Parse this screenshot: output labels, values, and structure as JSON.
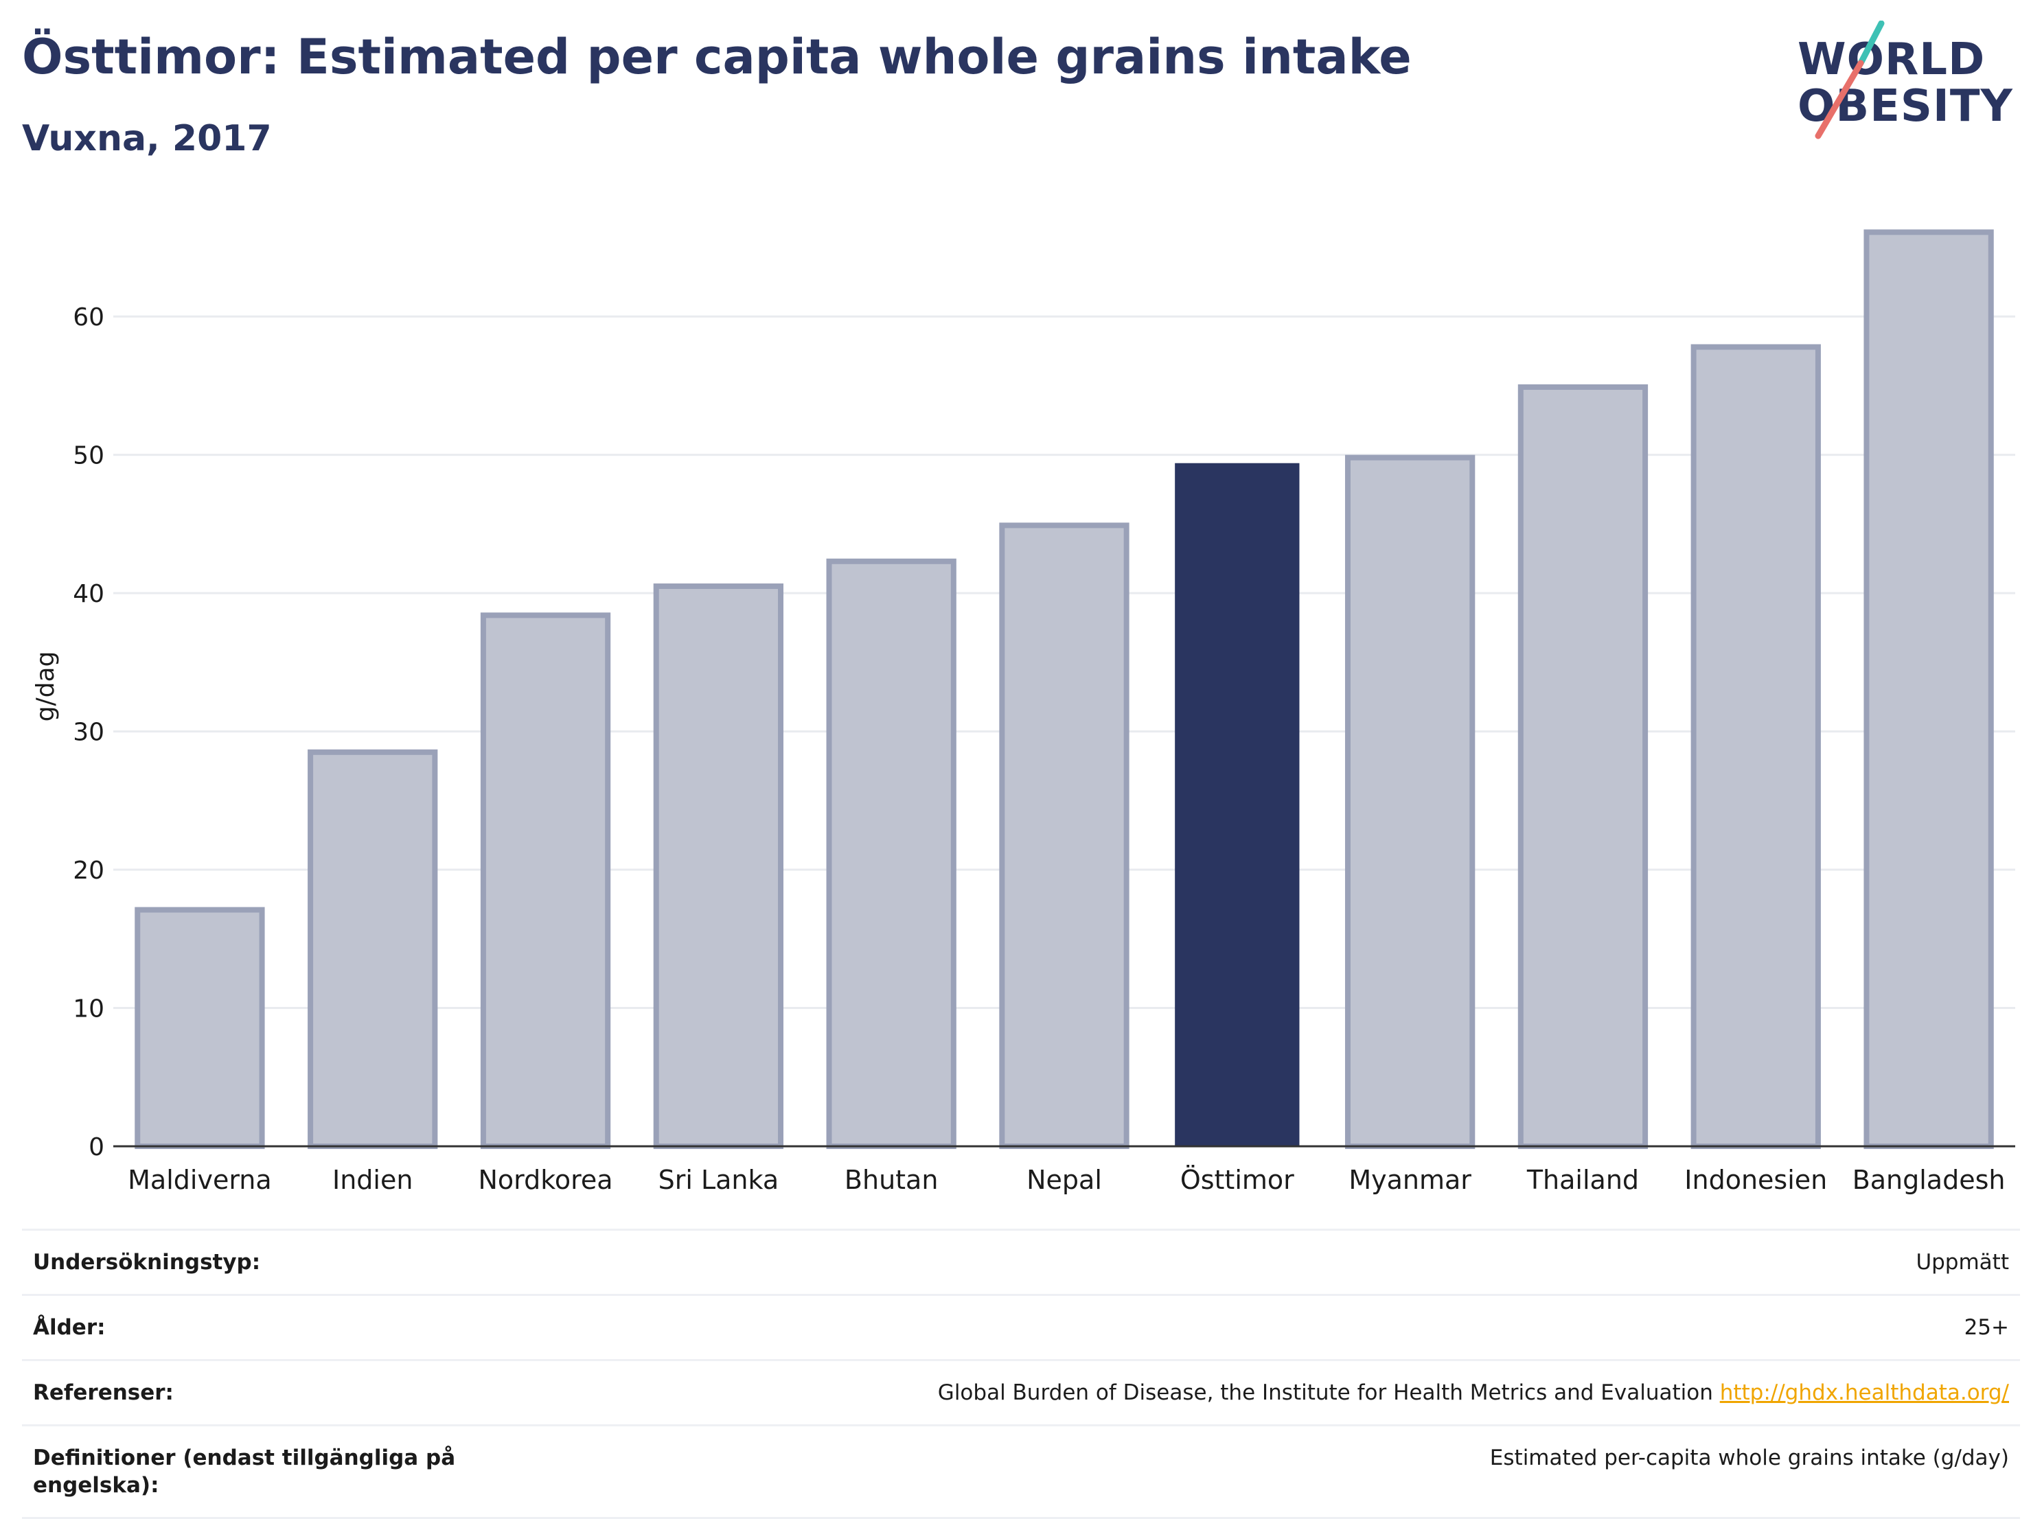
{
  "header": {
    "title": "Östtimor: Estimated per capita whole grains intake",
    "subtitle": "Vuxna, 2017"
  },
  "logo": {
    "line1": "WORLD",
    "line2": "OBESITY",
    "colors": {
      "text": "#2a3560",
      "slash_top": "#3ec1b5",
      "slash_bottom": "#e8706a"
    }
  },
  "chart_data": {
    "type": "bar",
    "ylabel": "g/dag",
    "xlabel": "",
    "ylim": [
      0,
      68
    ],
    "yticks": [
      0,
      10,
      20,
      30,
      40,
      50,
      60
    ],
    "grid": true,
    "highlight": "Östtimor",
    "colors": {
      "bar": "#bfc3d0",
      "bar_edge": "#9aa1b8",
      "highlight": "#2a3560",
      "grid": "#e9ebef",
      "axis": "#333333"
    },
    "categories": [
      "Maldiverna",
      "Indien",
      "Nordkorea",
      "Sri Lanka",
      "Bhutan",
      "Nepal",
      "Östtimor",
      "Myanmar",
      "Thailand",
      "Indonesien",
      "Bangladesh"
    ],
    "values": [
      17.1,
      28.5,
      38.4,
      40.5,
      42.3,
      44.9,
      49.4,
      49.8,
      54.9,
      57.8,
      66.1
    ]
  },
  "info": [
    {
      "key": "Undersökningstyp:",
      "value": "Uppmätt"
    },
    {
      "key": "Ålder:",
      "value": "25+"
    },
    {
      "key": "Referenser:",
      "value": "Global Burden of Disease, the Institute for Health Metrics and Evaluation",
      "link": "http://ghdx.healthdata.org/"
    },
    {
      "key": "Definitioner (endast tillgängliga på engelska):",
      "value": "Estimated per-capita whole grains intake (g/day)"
    }
  ]
}
